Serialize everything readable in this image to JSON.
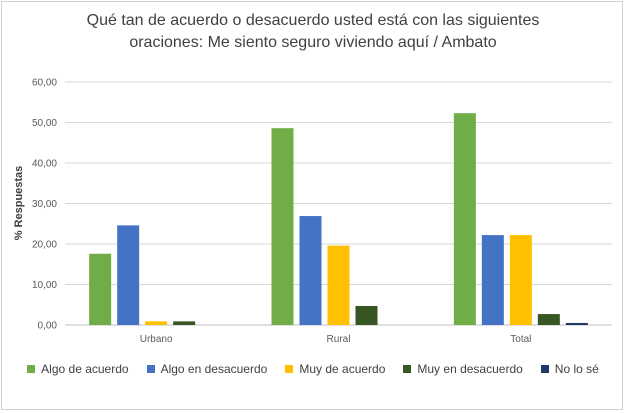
{
  "chart_data": {
    "type": "bar",
    "title": "Qué tan de acuerdo o desacuerdo usted está con las siguientes oraciones: Me siento seguro viviendo aquí / Ambato",
    "title_lines": [
      "Qué tan de acuerdo o desacuerdo usted está con las siguientes",
      "oraciones: Me siento seguro viviendo aquí / Ambato"
    ],
    "ylabel": "% Respuestas",
    "xlabel": "",
    "ylim": [
      0,
      60
    ],
    "yticks": [
      "0,00",
      "10,00",
      "20,00",
      "30,00",
      "40,00",
      "50,00",
      "60,00"
    ],
    "grid": true,
    "legend_position": "bottom",
    "categories": [
      "Urbano",
      "Rural",
      "Total"
    ],
    "series": [
      {
        "name": "Algo de acuerdo",
        "color": "#70ad47",
        "values": [
          17.6,
          48.6,
          52.3
        ]
      },
      {
        "name": "Algo en desacuerdo",
        "color": "#4472c4",
        "values": [
          24.6,
          26.9,
          22.2
        ]
      },
      {
        "name": "Muy de acuerdo",
        "color": "#ffc000",
        "values": [
          0.9,
          19.6,
          22.2
        ]
      },
      {
        "name": "Muy en desacuerdo",
        "color": "#375623",
        "values": [
          0.9,
          4.7,
          2.7
        ]
      },
      {
        "name": "No lo sé",
        "color": "#203864",
        "values": [
          0.0,
          0.0,
          0.5
        ]
      }
    ]
  }
}
